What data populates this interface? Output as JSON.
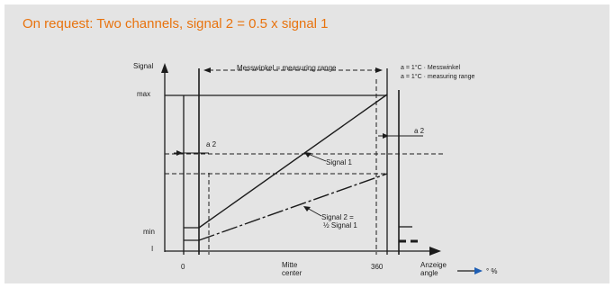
{
  "heading": "On request: Two channels, signal 2 = 0.5 x signal 1",
  "diagram": {
    "y_axis_title": "Signal",
    "range_title": "Messwinkel = measuring range",
    "legend_line1": "a = 1°C · Messwinkel",
    "legend_line2": "a = 1°C · measuring range",
    "y_max": "max",
    "y_min": "min",
    "y_zero": "I",
    "x_start": "0",
    "x_center_line1": "Mitte",
    "x_center_line2": "center",
    "x_end": "360",
    "x_axis_line1": "Anzeige",
    "x_axis_line2": "angle",
    "x_unit": "° %",
    "gap_left": "a 2",
    "gap_right": "a 2",
    "signal1_label": "Signal 1",
    "signal2_line1": "Signal 2 =",
    "signal2_line2": "½ Signal 1",
    "colors": {
      "heading": "#e8730e",
      "panel": "#e4e4e4",
      "ink": "#1c1c1c",
      "axis_arrow": "#1f5fb4"
    }
  }
}
